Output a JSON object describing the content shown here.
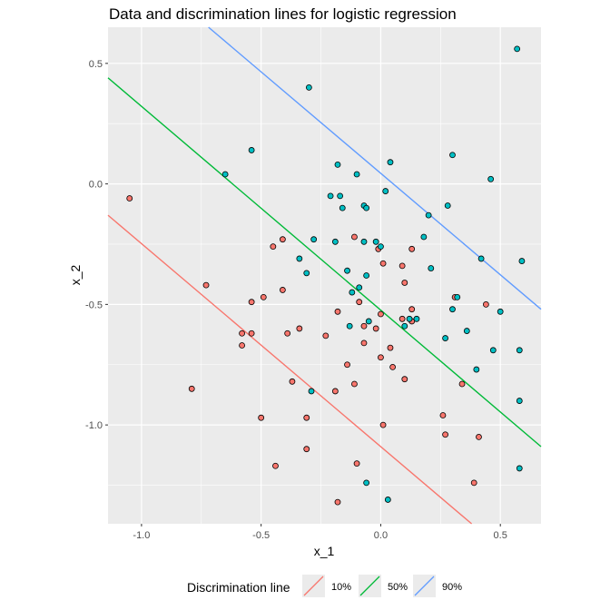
{
  "chart_data": {
    "type": "scatter",
    "title": "Data and discrimination lines for logistic regression",
    "xlabel": "x_1",
    "ylabel": "x_2",
    "xlim": [
      -1.14,
      0.67
    ],
    "ylim": [
      -1.41,
      0.65
    ],
    "x_ticks": [
      -1.0,
      -0.5,
      0.0,
      0.5
    ],
    "x_tick_labels": [
      "-1.0",
      "-0.5",
      "0.0",
      "0.5"
    ],
    "y_ticks": [
      -1.0,
      -0.5,
      0.0,
      0.5
    ],
    "y_tick_labels": [
      "-1.0",
      "-0.5",
      "0.0",
      "0.5"
    ],
    "grid": true,
    "legend_position": "bottom",
    "legend_title": "Discrimination line",
    "colors": {
      "panel_bg": "#ebebeb",
      "grid": "#ffffff",
      "class_0": "#f8766d",
      "class_1": "#00bfc4",
      "line_10": "#f8766d",
      "line_50": "#00ba38",
      "line_90": "#619cff"
    },
    "lines": [
      {
        "name": "10%",
        "color": "#f8766d",
        "start": [
          -1.14,
          -0.13
        ],
        "end": [
          0.38,
          -1.41
        ]
      },
      {
        "name": "50%",
        "color": "#00ba38",
        "start": [
          -1.14,
          0.44
        ],
        "end": [
          0.67,
          -1.09
        ]
      },
      {
        "name": "90%",
        "color": "#619cff",
        "start": [
          -0.72,
          0.65
        ],
        "end": [
          0.67,
          -0.52
        ]
      }
    ],
    "points": [
      {
        "x": -1.05,
        "y": -0.06,
        "class": 0
      },
      {
        "x": -0.79,
        "y": -0.85,
        "class": 0
      },
      {
        "x": -0.73,
        "y": -0.42,
        "class": 0
      },
      {
        "x": -0.58,
        "y": -0.62,
        "class": 0
      },
      {
        "x": -0.58,
        "y": -0.67,
        "class": 0
      },
      {
        "x": -0.54,
        "y": -0.49,
        "class": 0
      },
      {
        "x": -0.54,
        "y": -0.62,
        "class": 0
      },
      {
        "x": -0.49,
        "y": -0.47,
        "class": 0
      },
      {
        "x": -0.5,
        "y": -0.97,
        "class": 0
      },
      {
        "x": -0.45,
        "y": -0.26,
        "class": 0
      },
      {
        "x": -0.44,
        "y": -1.17,
        "class": 0
      },
      {
        "x": -0.41,
        "y": -0.23,
        "class": 0
      },
      {
        "x": -0.41,
        "y": -0.44,
        "class": 0
      },
      {
        "x": -0.39,
        "y": -0.62,
        "class": 0
      },
      {
        "x": -0.37,
        "y": -0.82,
        "class": 0
      },
      {
        "x": -0.34,
        "y": -0.6,
        "class": 0
      },
      {
        "x": -0.31,
        "y": -0.97,
        "class": 0
      },
      {
        "x": -0.31,
        "y": -1.1,
        "class": 0
      },
      {
        "x": -0.23,
        "y": -0.63,
        "class": 0
      },
      {
        "x": -0.19,
        "y": -0.86,
        "class": 0
      },
      {
        "x": -0.18,
        "y": -1.32,
        "class": 0
      },
      {
        "x": -0.18,
        "y": -0.53,
        "class": 0
      },
      {
        "x": -0.14,
        "y": -0.75,
        "class": 0
      },
      {
        "x": -0.11,
        "y": -0.22,
        "class": 0
      },
      {
        "x": -0.11,
        "y": -0.83,
        "class": 0
      },
      {
        "x": -0.1,
        "y": -1.16,
        "class": 0
      },
      {
        "x": -0.09,
        "y": -0.49,
        "class": 0
      },
      {
        "x": -0.07,
        "y": -0.59,
        "class": 0
      },
      {
        "x": -0.07,
        "y": -0.66,
        "class": 0
      },
      {
        "x": -0.02,
        "y": -0.6,
        "class": 0
      },
      {
        "x": -0.01,
        "y": -0.27,
        "class": 0
      },
      {
        "x": 0.0,
        "y": -0.54,
        "class": 0
      },
      {
        "x": 0.0,
        "y": -0.72,
        "class": 0
      },
      {
        "x": 0.01,
        "y": -1.0,
        "class": 0
      },
      {
        "x": 0.01,
        "y": -0.33,
        "class": 0
      },
      {
        "x": 0.04,
        "y": -0.68,
        "class": 0
      },
      {
        "x": 0.05,
        "y": -0.76,
        "class": 0
      },
      {
        "x": 0.09,
        "y": -0.34,
        "class": 0
      },
      {
        "x": 0.09,
        "y": -0.56,
        "class": 0
      },
      {
        "x": 0.1,
        "y": -0.41,
        "class": 0
      },
      {
        "x": 0.1,
        "y": -0.81,
        "class": 0
      },
      {
        "x": 0.13,
        "y": -0.27,
        "class": 0
      },
      {
        "x": 0.13,
        "y": -0.52,
        "class": 0
      },
      {
        "x": 0.13,
        "y": -0.57,
        "class": 0
      },
      {
        "x": 0.26,
        "y": -0.96,
        "class": 0
      },
      {
        "x": 0.27,
        "y": -1.04,
        "class": 0
      },
      {
        "x": 0.31,
        "y": -0.47,
        "class": 0
      },
      {
        "x": 0.34,
        "y": -0.83,
        "class": 0
      },
      {
        "x": 0.39,
        "y": -1.24,
        "class": 0
      },
      {
        "x": 0.41,
        "y": -1.05,
        "class": 0
      },
      {
        "x": 0.44,
        "y": -0.5,
        "class": 0
      },
      {
        "x": -0.65,
        "y": 0.04,
        "class": 1
      },
      {
        "x": -0.54,
        "y": 0.14,
        "class": 1
      },
      {
        "x": -0.34,
        "y": -0.31,
        "class": 1
      },
      {
        "x": -0.31,
        "y": -0.37,
        "class": 1
      },
      {
        "x": -0.28,
        "y": -0.23,
        "class": 1
      },
      {
        "x": -0.3,
        "y": 0.4,
        "class": 1
      },
      {
        "x": -0.29,
        "y": -0.86,
        "class": 1
      },
      {
        "x": -0.21,
        "y": -0.05,
        "class": 1
      },
      {
        "x": -0.19,
        "y": -0.24,
        "class": 1
      },
      {
        "x": -0.18,
        "y": 0.08,
        "class": 1
      },
      {
        "x": -0.17,
        "y": -0.05,
        "class": 1
      },
      {
        "x": -0.16,
        "y": -0.1,
        "class": 1
      },
      {
        "x": -0.14,
        "y": -0.36,
        "class": 1
      },
      {
        "x": -0.13,
        "y": -0.59,
        "class": 1
      },
      {
        "x": -0.12,
        "y": -0.45,
        "class": 1
      },
      {
        "x": -0.1,
        "y": 0.04,
        "class": 1
      },
      {
        "x": -0.09,
        "y": -0.43,
        "class": 1
      },
      {
        "x": -0.07,
        "y": -0.24,
        "class": 1
      },
      {
        "x": -0.07,
        "y": -0.09,
        "class": 1
      },
      {
        "x": -0.06,
        "y": -0.1,
        "class": 1
      },
      {
        "x": -0.06,
        "y": -0.38,
        "class": 1
      },
      {
        "x": -0.06,
        "y": -1.24,
        "class": 1
      },
      {
        "x": -0.05,
        "y": -0.57,
        "class": 1
      },
      {
        "x": -0.02,
        "y": -0.24,
        "class": 1
      },
      {
        "x": 0.0,
        "y": -0.26,
        "class": 1
      },
      {
        "x": 0.02,
        "y": -0.03,
        "class": 1
      },
      {
        "x": 0.04,
        "y": 0.09,
        "class": 1
      },
      {
        "x": 0.03,
        "y": -1.31,
        "class": 1
      },
      {
        "x": 0.1,
        "y": -0.59,
        "class": 1
      },
      {
        "x": 0.12,
        "y": -0.56,
        "class": 1
      },
      {
        "x": 0.15,
        "y": -0.56,
        "class": 1
      },
      {
        "x": 0.18,
        "y": -0.22,
        "class": 1
      },
      {
        "x": 0.2,
        "y": -0.13,
        "class": 1
      },
      {
        "x": 0.21,
        "y": -0.35,
        "class": 1
      },
      {
        "x": 0.27,
        "y": -0.64,
        "class": 1
      },
      {
        "x": 0.28,
        "y": -0.09,
        "class": 1
      },
      {
        "x": 0.3,
        "y": -0.52,
        "class": 1
      },
      {
        "x": 0.3,
        "y": 0.12,
        "class": 1
      },
      {
        "x": 0.32,
        "y": -0.47,
        "class": 1
      },
      {
        "x": 0.36,
        "y": -0.61,
        "class": 1
      },
      {
        "x": 0.4,
        "y": -0.77,
        "class": 1
      },
      {
        "x": 0.42,
        "y": -0.31,
        "class": 1
      },
      {
        "x": 0.46,
        "y": 0.02,
        "class": 1
      },
      {
        "x": 0.47,
        "y": -0.69,
        "class": 1
      },
      {
        "x": 0.5,
        "y": -0.53,
        "class": 1
      },
      {
        "x": 0.57,
        "y": 0.56,
        "class": 1
      },
      {
        "x": 0.58,
        "y": -0.69,
        "class": 1
      },
      {
        "x": 0.58,
        "y": -0.9,
        "class": 1
      },
      {
        "x": 0.58,
        "y": -1.18,
        "class": 1
      },
      {
        "x": 0.59,
        "y": -0.32,
        "class": 1
      }
    ]
  }
}
